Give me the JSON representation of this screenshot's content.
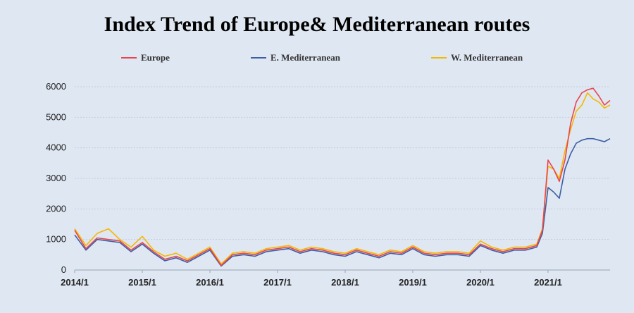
{
  "chart_data": {
    "type": "line",
    "title": "Index Trend of Europe& Mediterranean routes",
    "xlabel": "",
    "ylabel": "",
    "x_tick_labels": [
      "2014/1",
      "2015/1",
      "2016/1",
      "2017/1",
      "2018/1",
      "2019/1",
      "2020/1",
      "2021/1"
    ],
    "y_tick_labels": [
      "0",
      "1000",
      "2000",
      "3000",
      "4000",
      "5000",
      "6000"
    ],
    "ylim": [
      0,
      6000
    ],
    "xlim": [
      "2014-01",
      "2021-12"
    ],
    "grid": "horizontal",
    "legend_position": "top",
    "x": [
      "2014-01",
      "2014-03",
      "2014-05",
      "2014-07",
      "2014-09",
      "2014-11",
      "2015-01",
      "2015-03",
      "2015-05",
      "2015-07",
      "2015-09",
      "2015-11",
      "2016-01",
      "2016-03",
      "2016-05",
      "2016-07",
      "2016-09",
      "2016-11",
      "2017-01",
      "2017-03",
      "2017-05",
      "2017-07",
      "2017-09",
      "2017-11",
      "2018-01",
      "2018-03",
      "2018-05",
      "2018-07",
      "2018-09",
      "2018-11",
      "2019-01",
      "2019-03",
      "2019-05",
      "2019-07",
      "2019-09",
      "2019-11",
      "2020-01",
      "2020-03",
      "2020-05",
      "2020-07",
      "2020-09",
      "2020-11",
      "2020-12",
      "2021-01",
      "2021-02",
      "2021-03",
      "2021-04",
      "2021-05",
      "2021-06",
      "2021-07",
      "2021-08",
      "2021-09",
      "2021-10",
      "2021-11",
      "2021-12"
    ],
    "series": [
      {
        "name": "Europe",
        "color": "#e8454f",
        "values": [
          1300,
          700,
          1050,
          1000,
          950,
          650,
          900,
          600,
          350,
          450,
          300,
          500,
          700,
          150,
          500,
          550,
          500,
          650,
          700,
          750,
          600,
          700,
          650,
          550,
          500,
          650,
          550,
          450,
          600,
          550,
          750,
          550,
          500,
          550,
          550,
          500,
          850,
          700,
          600,
          700,
          700,
          800,
          1300,
          3600,
          3300,
          2900,
          3600,
          4800,
          5500,
          5800,
          5900,
          5950,
          5700,
          5400,
          5550
        ]
      },
      {
        "name": "E. Mediterranean",
        "color": "#3b5fa5",
        "values": [
          1150,
          650,
          1000,
          950,
          900,
          600,
          850,
          550,
          300,
          400,
          250,
          450,
          650,
          130,
          450,
          500,
          450,
          600,
          650,
          700,
          550,
          650,
          600,
          500,
          450,
          600,
          500,
          400,
          550,
          500,
          700,
          500,
          450,
          500,
          500,
          450,
          800,
          650,
          550,
          650,
          650,
          750,
          1200,
          2700,
          2550,
          2350,
          3300,
          3800,
          4150,
          4250,
          4300,
          4300,
          4250,
          4200,
          4300
        ]
      },
      {
        "name": "W. Mediterranean",
        "color": "#f5b800",
        "values": [
          1350,
          800,
          1200,
          1350,
          1000,
          750,
          1100,
          650,
          450,
          550,
          350,
          550,
          750,
          200,
          550,
          600,
          550,
          700,
          750,
          800,
          650,
          750,
          700,
          600,
          550,
          700,
          600,
          500,
          650,
          600,
          800,
          600,
          550,
          600,
          600,
          550,
          950,
          750,
          650,
          750,
          750,
          850,
          1350,
          3400,
          3300,
          3000,
          3900,
          4600,
          5200,
          5400,
          5800,
          5600,
          5500,
          5300,
          5400
        ]
      }
    ]
  }
}
